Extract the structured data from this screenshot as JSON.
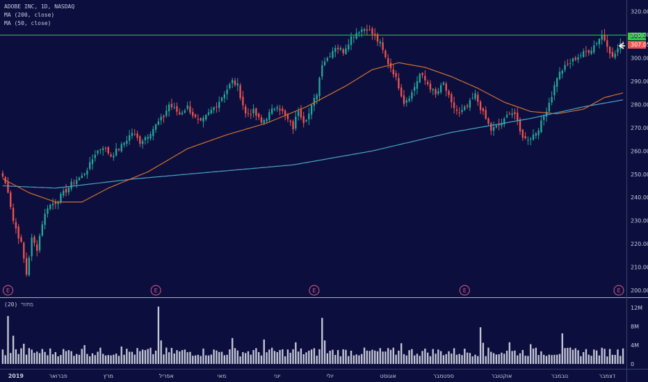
{
  "legend": {
    "title": "ADOBE INC, 1D, NASDAQ",
    "ma200": "MA (200, close)",
    "ma50": "MA (50, close)"
  },
  "volume_label": "מחזור (20)",
  "price_tags": {
    "high_label": "309.88",
    "last_label": "307.05"
  },
  "colors": {
    "background": "#0c0f3d",
    "up": "#26a69a",
    "down": "#ef5350",
    "ma200": "#4aa3c9",
    "ma50": "#d2712f",
    "hline": "#2ecc40",
    "volume": "#d9dbe8",
    "earnings": "#e05a8a",
    "separator": "#aab0c8"
  },
  "chart_data": {
    "type": "candlestick",
    "title": "ADOBE INC, 1D, NASDAQ",
    "y_ticks": [
      200,
      210,
      220,
      230,
      240,
      250,
      260,
      270,
      280,
      290,
      300,
      310,
      320
    ],
    "ylim": [
      197,
      325
    ],
    "volume_ticks": [
      {
        "value": 0,
        "label": "0"
      },
      {
        "value": 4,
        "label": "4M"
      },
      {
        "value": 8,
        "label": "8M"
      },
      {
        "value": 12,
        "label": "12M"
      }
    ],
    "volume_ylim": [
      0,
      13
    ],
    "x_labels": [
      "2019",
      "פברואר",
      "מרץ",
      "אפריל",
      "מאי",
      "יוני",
      "יולי",
      "אוגוסט",
      "ספטמבר",
      "אוקטובר",
      "נובמבר",
      "דצמבר"
    ],
    "horizontal_line": 309.88,
    "last_price": 307.05,
    "earnings_markers": [
      "E",
      "E",
      "E",
      "E",
      "E"
    ],
    "bars": 236,
    "close_anchors": [
      [
        0,
        249
      ],
      [
        2,
        243
      ],
      [
        4,
        230
      ],
      [
        7,
        220
      ],
      [
        9,
        207
      ],
      [
        11,
        222
      ],
      [
        13,
        218
      ],
      [
        15,
        229
      ],
      [
        17,
        236
      ],
      [
        20,
        238
      ],
      [
        24,
        243
      ],
      [
        27,
        247
      ],
      [
        30,
        249
      ],
      [
        33,
        254
      ],
      [
        35,
        259
      ],
      [
        38,
        262
      ],
      [
        41,
        258
      ],
      [
        45,
        262
      ],
      [
        49,
        268
      ],
      [
        52,
        264
      ],
      [
        55,
        267
      ],
      [
        58,
        271
      ],
      [
        61,
        275
      ],
      [
        63,
        280
      ],
      [
        65,
        278
      ],
      [
        67,
        276
      ],
      [
        70,
        279
      ],
      [
        73,
        274
      ],
      [
        75,
        272
      ],
      [
        78,
        276
      ],
      [
        81,
        280
      ],
      [
        84,
        285
      ],
      [
        87,
        290
      ],
      [
        89,
        288
      ],
      [
        92,
        276
      ],
      [
        95,
        277
      ],
      [
        98,
        272
      ],
      [
        101,
        276
      ],
      [
        104,
        280
      ],
      [
        107,
        275
      ],
      [
        110,
        270
      ],
      [
        112,
        278
      ],
      [
        114,
        273
      ],
      [
        116,
        276
      ],
      [
        119,
        285
      ],
      [
        121,
        298
      ],
      [
        123,
        300
      ],
      [
        126,
        305
      ],
      [
        129,
        303
      ],
      [
        132,
        309
      ],
      [
        135,
        312
      ],
      [
        138,
        313
      ],
      [
        141,
        309
      ],
      [
        143,
        306
      ],
      [
        145,
        300
      ],
      [
        148,
        294
      ],
      [
        150,
        288
      ],
      [
        152,
        281
      ],
      [
        155,
        285
      ],
      [
        158,
        293
      ],
      [
        161,
        289
      ],
      [
        164,
        284
      ],
      [
        167,
        289
      ],
      [
        170,
        280
      ],
      [
        173,
        276
      ],
      [
        176,
        279
      ],
      [
        179,
        284
      ],
      [
        182,
        276
      ],
      [
        185,
        269
      ],
      [
        188,
        271
      ],
      [
        190,
        273
      ],
      [
        192,
        277
      ],
      [
        194,
        276
      ],
      [
        196,
        268
      ],
      [
        198,
        265
      ],
      [
        200,
        266
      ],
      [
        202,
        268
      ],
      [
        204,
        272
      ],
      [
        206,
        278
      ],
      [
        208,
        284
      ],
      [
        210,
        292
      ],
      [
        212,
        295
      ],
      [
        214,
        297
      ],
      [
        217,
        300
      ],
      [
        220,
        302
      ],
      [
        223,
        304
      ],
      [
        225,
        307
      ],
      [
        227,
        310
      ],
      [
        229,
        306
      ],
      [
        231,
        300
      ],
      [
        233,
        304
      ],
      [
        235,
        307
      ]
    ],
    "ma200_anchors": [
      [
        0,
        245
      ],
      [
        20,
        244
      ],
      [
        50,
        248
      ],
      [
        80,
        251
      ],
      [
        110,
        254
      ],
      [
        140,
        260
      ],
      [
        170,
        268
      ],
      [
        200,
        274
      ],
      [
        220,
        279
      ],
      [
        235,
        282
      ]
    ],
    "ma50_anchors": [
      [
        0,
        248
      ],
      [
        10,
        242
      ],
      [
        20,
        238
      ],
      [
        30,
        238
      ],
      [
        40,
        244
      ],
      [
        55,
        251
      ],
      [
        70,
        261
      ],
      [
        85,
        267
      ],
      [
        100,
        272
      ],
      [
        115,
        279
      ],
      [
        130,
        288
      ],
      [
        140,
        295
      ],
      [
        150,
        298
      ],
      [
        160,
        296
      ],
      [
        170,
        292
      ],
      [
        180,
        287
      ],
      [
        190,
        281
      ],
      [
        200,
        277
      ],
      [
        210,
        276
      ],
      [
        220,
        278
      ],
      [
        228,
        283
      ],
      [
        235,
        285
      ]
    ],
    "volume_spikes": [
      [
        2,
        10.2
      ],
      [
        4,
        6.0
      ],
      [
        8,
        4.3
      ],
      [
        31,
        4.0
      ],
      [
        45,
        3.7
      ],
      [
        59,
        12.2
      ],
      [
        60,
        5.0
      ],
      [
        87,
        5.5
      ],
      [
        99,
        5.2
      ],
      [
        111,
        4.6
      ],
      [
        121,
        9.8
      ],
      [
        122,
        5.0
      ],
      [
        151,
        4.4
      ],
      [
        181,
        7.8
      ],
      [
        182,
        4.5
      ],
      [
        192,
        4.6
      ],
      [
        200,
        4.2
      ],
      [
        212,
        6.5
      ],
      [
        235,
        3.3
      ]
    ]
  }
}
